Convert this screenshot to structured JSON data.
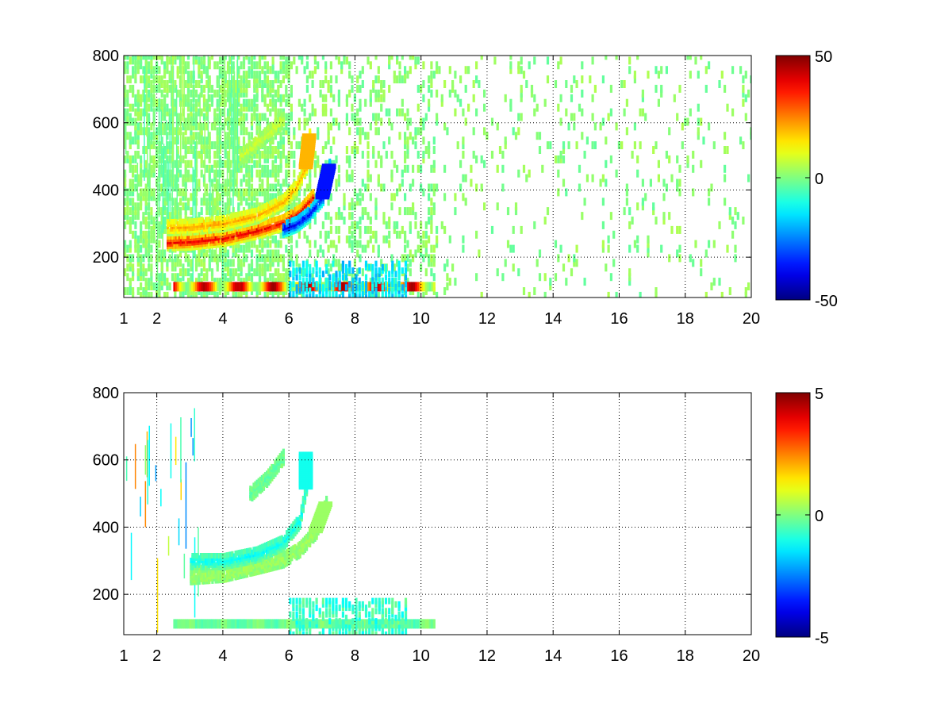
{
  "chart_data": [
    {
      "type": "heatmap",
      "title": "",
      "xlabel": "",
      "ylabel": "",
      "xlim": [
        1,
        20
      ],
      "ylim": [
        80,
        800
      ],
      "xticks": [
        "1",
        "2",
        "4",
        "6",
        "8",
        "10",
        "12",
        "14",
        "16",
        "18",
        "20"
      ],
      "xtick_values": [
        1,
        2,
        4,
        6,
        8,
        10,
        12,
        14,
        16,
        18,
        20
      ],
      "yticks": [
        "200",
        "400",
        "600",
        "800"
      ],
      "ytick_values": [
        200,
        400,
        600,
        800
      ],
      "grid": true,
      "colormap": "jet",
      "colorbar": {
        "min": -50,
        "max": 50,
        "ticks": [
          "50",
          "0",
          "-50"
        ],
        "tick_values": [
          50,
          0,
          -50
        ]
      },
      "features": [
        {
          "kind": "curve",
          "points": [
            [
              2.3,
              245
            ],
            [
              3,
              248
            ],
            [
              4,
              258
            ],
            [
              5,
              280
            ],
            [
              5.8,
              305
            ],
            [
              6.3,
              335
            ],
            [
              6.7,
              380
            ]
          ],
          "value": 40
        },
        {
          "kind": "curve",
          "points": [
            [
              2.3,
              290
            ],
            [
              3,
              292
            ],
            [
              4,
              302
            ],
            [
              5,
              325
            ],
            [
              5.8,
              365
            ],
            [
              6.2,
              410
            ],
            [
              6.5,
              470
            ],
            [
              6.6,
              560
            ]
          ],
          "value": 22
        },
        {
          "kind": "curve",
          "points": [
            [
              5.8,
              285
            ],
            [
              6.2,
              300
            ],
            [
              6.6,
              330
            ],
            [
              7.0,
              380
            ],
            [
              7.2,
              470
            ]
          ],
          "value": -40
        },
        {
          "kind": "band",
          "x": [
            2.5,
            10.4
          ],
          "y": 112,
          "value": 45
        },
        {
          "kind": "region",
          "x": [
            6.0,
            9.5
          ],
          "y": [
            80,
            190
          ],
          "value": -15
        },
        {
          "kind": "curve",
          "points": [
            [
              4.5,
              500
            ],
            [
              5,
              540
            ],
            [
              5.8,
              610
            ]
          ],
          "value": 8
        }
      ]
    },
    {
      "type": "heatmap",
      "title": "",
      "xlabel": "",
      "ylabel": "",
      "xlim": [
        1,
        20
      ],
      "ylim": [
        80,
        800
      ],
      "xticks": [
        "1",
        "2",
        "4",
        "6",
        "8",
        "10",
        "12",
        "14",
        "16",
        "18",
        "20"
      ],
      "xtick_values": [
        1,
        2,
        4,
        6,
        8,
        10,
        12,
        14,
        16,
        18,
        20
      ],
      "yticks": [
        "200",
        "400",
        "600",
        "800"
      ],
      "ytick_values": [
        200,
        400,
        600,
        800
      ],
      "grid": true,
      "colormap": "jet",
      "colorbar": {
        "min": -5,
        "max": 5,
        "ticks": [
          "5",
          "0",
          "-5"
        ],
        "tick_values": [
          5,
          0,
          -5
        ]
      },
      "features": [
        {
          "kind": "curve",
          "points": [
            [
              3,
              255
            ],
            [
              4,
              262
            ],
            [
              5,
              285
            ],
            [
              5.8,
              305
            ],
            [
              6.3,
              335
            ],
            [
              6.8,
              390
            ],
            [
              7.1,
              470
            ]
          ],
          "value": 0.3
        },
        {
          "kind": "curve",
          "points": [
            [
              3,
              300
            ],
            [
              4,
              300
            ],
            [
              5,
              320
            ],
            [
              5.8,
              355
            ],
            [
              6.3,
              420
            ],
            [
              6.5,
              520
            ],
            [
              6.5,
              620
            ]
          ],
          "value": -1.2
        },
        {
          "kind": "band",
          "x": [
            2.5,
            10.4
          ],
          "y": 112,
          "value": -0.5
        },
        {
          "kind": "region",
          "x": [
            6.0,
            9.5
          ],
          "y": [
            80,
            185
          ],
          "value": -0.7
        },
        {
          "kind": "curve",
          "points": [
            [
              4.8,
              500
            ],
            [
              5.3,
              545
            ],
            [
              5.8,
              610
            ]
          ],
          "value": -0.3
        }
      ]
    }
  ]
}
